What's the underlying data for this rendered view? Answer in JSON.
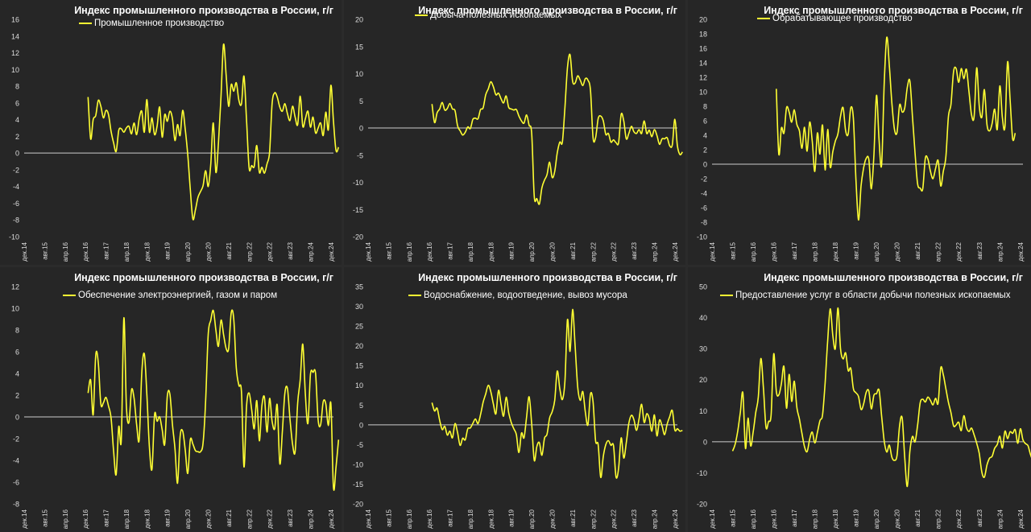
{
  "colors": {
    "line": "#ffff33",
    "background": "#262626",
    "text": "#dddddd",
    "zero_line": "#cccccc"
  },
  "x_ticks": [
    "дек.14",
    "авг.15",
    "апр.16",
    "дек.16",
    "авг.17",
    "апр.18",
    "дек.18",
    "авг.19",
    "апр.20",
    "дек.20",
    "авг.21",
    "апр.22",
    "дек.22",
    "авг.23",
    "апр.24",
    "дек.24"
  ],
  "chart_data": [
    {
      "type": "line",
      "title": "Индекс промышленного производства в России, г/г",
      "x_range": [
        "дек.14",
        "янв.25"
      ],
      "ylim": [
        -10,
        16
      ],
      "ytick_step": 2,
      "grid": false,
      "legend_placement": "top-left",
      "series": [
        {
          "name": "Промышленное производство",
          "x_start": "янв.17",
          "values": [
            6.7,
            1.7,
            4.0,
            4.5,
            6.3,
            5.6,
            4.2,
            5.1,
            4.6,
            2.6,
            1.2,
            0.2,
            2.7,
            2.9,
            2.5,
            3.0,
            3.2,
            2.3,
            3.6,
            2.2,
            4.1,
            5.0,
            2.5,
            6.4,
            2.5,
            4.2,
            2.2,
            3.2,
            5.5,
            1.9,
            4.6,
            3.8,
            5.0,
            4.1,
            1.5,
            3.4,
            2.1,
            5.1,
            2.9,
            -0.2,
            -4.4,
            -7.9,
            -6.8,
            -5.3,
            -4.6,
            -3.9,
            -2.1,
            -4.0,
            -1.3,
            3.6,
            -2.3,
            1.2,
            6.8,
            13.0,
            9.4,
            5.6,
            8.2,
            7.4,
            8.4,
            6.3,
            5.9,
            9.2,
            3.9,
            -1.8,
            -1.5,
            -1.6,
            0.9,
            -2.3,
            -1.7,
            -2.4,
            -1.3,
            0.1,
            5.9,
            7.2,
            6.7,
            5.5,
            5.0,
            5.9,
            4.7,
            3.9,
            5.6,
            4.3,
            3.4,
            6.8,
            3.2,
            4.1,
            5.0,
            3.1,
            4.3,
            2.4,
            3.0,
            3.6,
            2.1,
            4.9,
            2.8,
            8.1,
            3.8,
            0.3,
            0.7
          ]
        }
      ]
    },
    {
      "type": "line",
      "title": "Индекс промышленного производства в России, г/г",
      "x_range": [
        "дек.14",
        "янв.25"
      ],
      "ylim": [
        -20,
        20
      ],
      "ytick_step": 5,
      "grid": false,
      "legend_placement": "top-left",
      "series": [
        {
          "name": "Добыча полезных ископаемых",
          "x_start": "янв.17",
          "values": [
            4.4,
            1.0,
            2.8,
            3.5,
            4.7,
            3.3,
            3.6,
            4.5,
            3.5,
            3.2,
            0.4,
            -0.5,
            -1.3,
            -0.8,
            0.2,
            -0.1,
            1.6,
            1.8,
            1.7,
            3.4,
            3.7,
            6.1,
            7.2,
            8.5,
            7.6,
            6.1,
            6.4,
            5.4,
            4.6,
            5.9,
            3.8,
            3.5,
            3.3,
            3.4,
            2.2,
            1.3,
            0.9,
            2.4,
            0.5,
            -1.0,
            -12.6,
            -13.0,
            -14.0,
            -11.0,
            -9.6,
            -8.6,
            -6.3,
            -9.1,
            -8.0,
            -4.6,
            -2.6,
            -2.6,
            3.8,
            11.1,
            13.5,
            8.6,
            8.3,
            9.6,
            8.8,
            7.8,
            9.1,
            8.8,
            6.9,
            -1.8,
            -1.8,
            1.7,
            2.2,
            1.3,
            -1.2,
            -1.0,
            -2.6,
            -2.2,
            -2.7,
            -2.7,
            2.5,
            1.3,
            -2.0,
            -1.0,
            0.3,
            -0.7,
            -1.0,
            -0.3,
            -1.0,
            1.3,
            -1.0,
            -0.4,
            -1.6,
            -0.3,
            -1.4,
            -3.0,
            -2.0,
            -2.0,
            -1.8,
            -3.3,
            -3.1,
            1.6,
            -3.3,
            -4.9,
            -4.4
          ]
        }
      ]
    },
    {
      "type": "line",
      "title": "Индекс промышленного производства в России, г/г",
      "x_range": [
        "дек.14",
        "янв.25"
      ],
      "ylim": [
        -10,
        20
      ],
      "ytick_step": 2,
      "grid": false,
      "legend_placement": "top-left",
      "series": [
        {
          "name": "Обрабатывающее производство",
          "x_start": "янв.17",
          "values": [
            10.4,
            1.4,
            5.0,
            4.3,
            7.8,
            7.2,
            5.8,
            7.5,
            5.5,
            4.6,
            2.2,
            5.1,
            1.8,
            5.8,
            3.2,
            -1.0,
            4.3,
            1.4,
            5.4,
            -0.8,
            4.8,
            -0.4,
            1.7,
            3.2,
            4.2,
            6.6,
            7.8,
            4.6,
            4.2,
            7.8,
            6.3,
            -2.0,
            -7.7,
            -3.0,
            -0.5,
            0.8,
            0.7,
            -3.4,
            1.3,
            9.5,
            3.3,
            -0.1,
            11.0,
            17.5,
            13.6,
            8.4,
            4.8,
            4.4,
            8.2,
            7.2,
            7.8,
            10.6,
            11.5,
            6.6,
            1.6,
            -2.7,
            -3.3,
            -3.4,
            0.8,
            0.7,
            -1.0,
            -2.0,
            -0.6,
            0.5,
            -3.0,
            -1.0,
            1.0,
            6.6,
            8.3,
            12.8,
            13.2,
            11.3,
            13.2,
            11.8,
            13.1,
            10.0,
            6.8,
            6.6,
            13.3,
            8.0,
            6.5,
            10.3,
            5.5,
            4.6,
            5.6,
            7.6,
            4.8,
            10.8,
            6.4,
            5.2,
            14.1,
            9.0,
            3.5,
            4.3
          ]
        }
      ]
    },
    {
      "type": "line",
      "title": "Индекс промышленного производства в России, г/г",
      "x_range": [
        "дек.14",
        "янв.25"
      ],
      "ylim": [
        -8,
        12
      ],
      "ytick_step": 2,
      "grid": false,
      "legend_placement": "top-left",
      "series": [
        {
          "name": "Обеспечение электроэнергией, газом и паром",
          "x_start": "янв.17",
          "values": [
            2.2,
            3.4,
            0.2,
            5.7,
            5.0,
            1.2,
            1.3,
            1.8,
            1.0,
            -0.1,
            -3.2,
            -5.3,
            -0.9,
            -2.1,
            9.1,
            1.0,
            -0.5,
            2.5,
            1.7,
            -0.7,
            -2.1,
            4.0,
            5.8,
            2.1,
            -2.8,
            -4.8,
            0.2,
            -0.4,
            0.0,
            -1.2,
            -2.5,
            1.9,
            2.1,
            -0.7,
            -2.9,
            -6.1,
            -1.8,
            -1.3,
            -3.0,
            -5.2,
            -2.1,
            -2.5,
            -3.1,
            -3.2,
            -3.2,
            -2.4,
            1.5,
            7.6,
            8.9,
            9.8,
            8.0,
            6.5,
            8.9,
            7.6,
            6.3,
            6.3,
            9.6,
            9.0,
            4.5,
            2.9,
            2.3,
            -4.6,
            1.0,
            2.2,
            0.7,
            -1.1,
            1.5,
            -2.2,
            1.0,
            1.8,
            -1.4,
            1.7,
            -0.4,
            -1.1,
            1.1,
            -4.3,
            -1.4,
            2.2,
            2.6,
            -0.2,
            -2.5,
            -3.2,
            1.3,
            3.4,
            6.7,
            2.1,
            -0.6,
            3.9,
            4.1,
            4.0,
            -0.3,
            -0.7,
            1.4,
            1.2,
            -0.8,
            1.2,
            -6.5,
            -4.6,
            -2.1
          ]
        }
      ]
    },
    {
      "type": "line",
      "title": "Индекс промышленного производства в России, г/г",
      "x_range": [
        "дек.14",
        "янв.25"
      ],
      "ylim": [
        -20,
        35
      ],
      "ytick_step": 5,
      "grid": false,
      "legend_placement": "top-left",
      "series": [
        {
          "name": "Водоснабжение, водоотведение, вывоз мусора",
          "x_start": "янв.17",
          "values": [
            5.6,
            3.5,
            4.2,
            1.1,
            -1.2,
            -0.4,
            -2.6,
            -1.6,
            -3.3,
            0.3,
            -2.0,
            -5.2,
            -3.4,
            -3.8,
            -1.0,
            -0.8,
            0.4,
            1.5,
            0.3,
            2.6,
            5.7,
            7.8,
            10.0,
            8.4,
            5.3,
            2.8,
            8.7,
            5.3,
            2.2,
            7.0,
            3.1,
            0.6,
            -1.0,
            -2.5,
            -7.0,
            -2.1,
            -3.3,
            2.0,
            7.1,
            0.2,
            -9.0,
            -5.5,
            -4.5,
            -7.7,
            -3.4,
            -2.4,
            1.7,
            3.3,
            6.2,
            13.6,
            9.1,
            6.4,
            11.1,
            26.6,
            18.6,
            29.2,
            19.7,
            9.6,
            6.2,
            8.4,
            3.1,
            0.0,
            7.8,
            5.8,
            -4.0,
            -5.0,
            -13.3,
            -8.0,
            -5.0,
            -4.0,
            -5.2,
            -5.3,
            -13.2,
            -11.0,
            -3.3,
            -8.4,
            -4.6,
            0.4,
            2.4,
            1.3,
            -1.4,
            1.5,
            5.2,
            0.6,
            2.8,
            1.6,
            -1.6,
            2.5,
            -2.8,
            1.2,
            -0.3,
            -2.5,
            0.2,
            2.1,
            3.6,
            -1.3,
            -1.0,
            -1.6,
            -1.4
          ]
        }
      ]
    },
    {
      "type": "line",
      "title": "Индекс промышленного производства в России, г/г",
      "x_range": [
        "дек.14",
        "янв.25"
      ],
      "ylim": [
        -20,
        50
      ],
      "ytick_step": 10,
      "grid": false,
      "legend_placement": "top-left",
      "series": [
        {
          "name": "Предоставление услуг в области добычи полезных ископаемых",
          "x_start": "авг.15",
          "values": [
            -3.0,
            -0.8,
            3.4,
            9.4,
            15.7,
            -2.1,
            7.6,
            -1.3,
            3.0,
            9.3,
            14.3,
            26.8,
            17.3,
            4.7,
            6.5,
            8.8,
            28.3,
            16.3,
            15.1,
            18.7,
            24.2,
            10.8,
            21.7,
            13.0,
            19.5,
            11.1,
            7.3,
            2.6,
            -1.6,
            -3.2,
            0.8,
            3.1,
            -0.4,
            3.0,
            6.8,
            8.6,
            18.9,
            32.6,
            42.8,
            34.3,
            30.1,
            43.1,
            30.0,
            26.7,
            28.6,
            22.9,
            23.6,
            17.1,
            15.8,
            14.6,
            10.4,
            12.2,
            15.9,
            16.4,
            10.6,
            15.0,
            15.5,
            16.6,
            8.4,
            0.3,
            -3.3,
            -1.1,
            -5.0,
            -6.0,
            -4.4,
            5.2,
            7.6,
            -5.3,
            -14.4,
            -3.1,
            1.7,
            0.0,
            5.3,
            12.5,
            13.7,
            12.8,
            14.4,
            13.3,
            11.9,
            14.0,
            12.5,
            23.7,
            21.6,
            17.1,
            12.7,
            9.3,
            5.1,
            5.4,
            6.3,
            3.6,
            8.4,
            4.6,
            3.3,
            4.4,
            2.2,
            -0.5,
            -3.8,
            -9.8,
            -11.4,
            -7.5,
            -5.3,
            -4.7,
            -2.1,
            -0.9,
            1.8,
            -2.0,
            3.4,
            1.0,
            3.2,
            2.7,
            3.9,
            -0.5,
            4.2,
            0.6,
            -0.6,
            -1.3,
            -4.3,
            -5.6,
            -1.4,
            2.2,
            -5.1,
            -8.2,
            -6.3,
            -3.4,
            5.1,
            -3.9,
            -5.1,
            0.9,
            4.9,
            14.3,
            4.3,
            1.0,
            2.1,
            -3.3
          ]
        }
      ]
    }
  ]
}
